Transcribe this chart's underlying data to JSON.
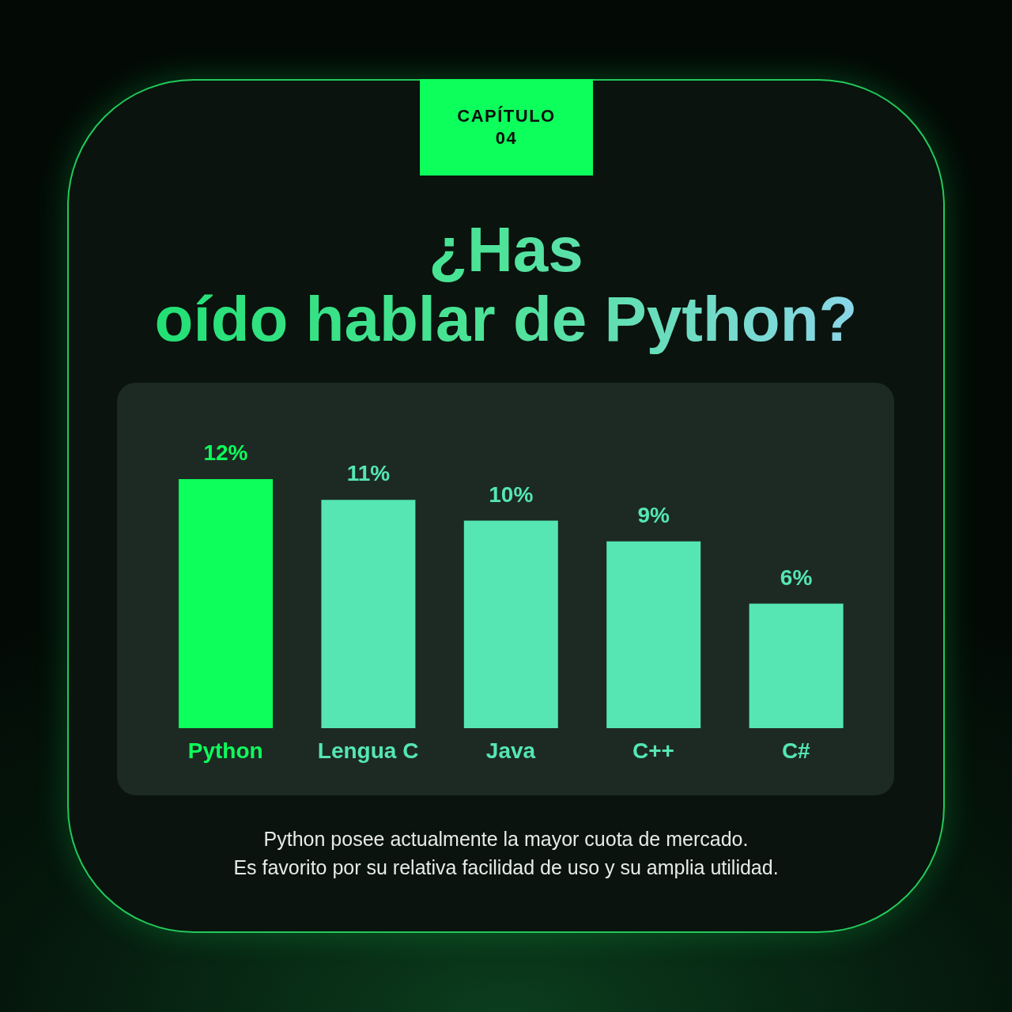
{
  "chart_data": {
    "type": "bar",
    "title": "¿Has\noído hablar de Python?",
    "categories": [
      "Python",
      "Lengua C",
      "Java",
      "C++",
      "C#"
    ],
    "values": [
      12,
      11,
      10,
      9,
      6
    ],
    "colors": [
      "#0dff5c",
      "#55e6b4",
      "#55e6b4",
      "#55e6b4",
      "#55e6b4"
    ],
    "value_labels": [
      "12%",
      "11%",
      "10%",
      "9%",
      "6%"
    ],
    "tick_labels": "x",
    "annotations": [
      "CAPÍTULO\n04",
      "Python posee actualmente la mayor cuota de mercado.\nEs favorito por su relativa facilidad de uso y su amplia utilidad."
    ]
  }
}
